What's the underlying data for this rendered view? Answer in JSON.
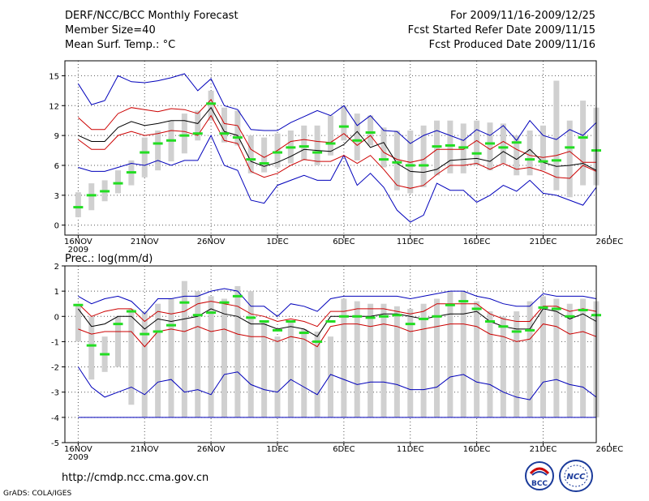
{
  "header": {
    "title": "DERF/NCC/BCC Monthly Forecast",
    "member_size": "Member Size=40",
    "variable": "Mean Surf. Temp.: °C",
    "period": "For 2009/11/16-2009/12/25",
    "started": "Fcst Started Refer Date 2009/11/15",
    "produced": "Fcst Produced Date 2009/11/16"
  },
  "footer": {
    "url": "http://cmdp.ncc.cma.gov.cn",
    "credit": "GrADS: COLA/IGES",
    "logo_bcc": "BCC",
    "logo_ncc": "NCC"
  },
  "colors": {
    "box": "#d0d0d0",
    "median": "#000000",
    "quartile": "#cc0000",
    "extreme": "#0000bb",
    "mean_marker": "#22dd22",
    "grid": "#555555"
  },
  "chart_data": [
    {
      "type": "box-line",
      "title": "Mean Surf. Temp.: °C",
      "ylabel": "°C",
      "ylim": [
        -1,
        16.5
      ],
      "yticks": [
        0,
        3,
        6,
        9,
        12,
        15
      ],
      "xlim": [
        0,
        40
      ],
      "xticks": [
        {
          "day": 1,
          "label": "16NOV",
          "sub": "2009"
        },
        {
          "day": 6,
          "label": "21NOV"
        },
        {
          "day": 11,
          "label": "26NOV"
        },
        {
          "day": 16,
          "label": "1DEC"
        },
        {
          "day": 21,
          "label": "6DEC"
        },
        {
          "day": 26,
          "label": "11DEC"
        },
        {
          "day": 31,
          "label": "16DEC"
        },
        {
          "day": 36,
          "label": "21DEC"
        },
        {
          "day": 41,
          "label": "26DEC"
        }
      ],
      "days": [
        1,
        2,
        3,
        4,
        5,
        6,
        7,
        8,
        9,
        10,
        11,
        12,
        13,
        14,
        15,
        16,
        17,
        18,
        19,
        20,
        21,
        22,
        23,
        24,
        25,
        26,
        27,
        28,
        29,
        30,
        31,
        32,
        33,
        34,
        35,
        36,
        37,
        38,
        39,
        40
      ],
      "box_low": [
        0.8,
        1.5,
        2.4,
        3.2,
        4.0,
        4.8,
        5.5,
        6.4,
        7.2,
        8.5,
        10.5,
        8.3,
        8.0,
        5.2,
        5.3,
        5.8,
        6.2,
        6.5,
        6.0,
        7.0,
        8.5,
        6.5,
        8.0,
        5.8,
        3.5,
        3.2,
        3.8,
        5.0,
        5.2,
        5.2,
        6.0,
        5.5,
        6.2,
        5.0,
        5.0,
        5.5,
        3.5,
        2.8,
        4.0,
        4.0
      ],
      "box_high": [
        3.3,
        4.2,
        4.5,
        5.5,
        6.5,
        8.8,
        9.5,
        10.5,
        11.2,
        11.5,
        13.5,
        11.8,
        11.5,
        9.0,
        8.8,
        9.2,
        9.5,
        10.0,
        10.0,
        11.0,
        12.0,
        11.2,
        11.0,
        9.8,
        9.5,
        9.5,
        10.0,
        10.5,
        10.5,
        10.2,
        10.5,
        10.3,
        10.2,
        9.0,
        9.5,
        10.0,
        14.5,
        10.5,
        12.5,
        11.8
      ],
      "mean": [
        1.8,
        3.0,
        3.4,
        4.2,
        5.3,
        7.3,
        8.2,
        8.5,
        9.0,
        9.2,
        12.2,
        9.2,
        8.8,
        6.6,
        6.2,
        7.3,
        7.8,
        7.9,
        7.3,
        8.2,
        9.9,
        8.5,
        9.3,
        6.6,
        6.3,
        6.0,
        6.0,
        7.9,
        8.0,
        7.8,
        7.2,
        8.2,
        7.8,
        8.3,
        6.6,
        6.4,
        6.5,
        7.8,
        8.8,
        7.5
      ],
      "median": [
        9.0,
        8.4,
        8.4,
        9.8,
        10.4,
        10.0,
        10.2,
        10.5,
        10.5,
        10.2,
        11.8,
        9.4,
        9.0,
        6.4,
        5.9,
        6.3,
        6.9,
        7.6,
        7.5,
        7.4,
        8.1,
        9.4,
        7.8,
        8.3,
        6.2,
        5.4,
        5.3,
        5.6,
        6.5,
        6.6,
        6.7,
        6.4,
        7.4,
        6.6,
        7.6,
        6.3,
        5.9,
        6.0,
        6.2,
        5.5
      ],
      "q_upper": [
        10.8,
        9.6,
        9.6,
        11.2,
        11.8,
        11.6,
        11.4,
        11.7,
        11.6,
        11.2,
        12.6,
        10.2,
        10.0,
        7.6,
        6.8,
        7.5,
        8.4,
        8.6,
        8.4,
        8.3,
        9.2,
        8.0,
        9.0,
        7.3,
        6.6,
        6.3,
        6.6,
        7.6,
        7.6,
        7.6,
        8.5,
        7.6,
        8.4,
        7.6,
        7.0,
        6.8,
        7.0,
        7.4,
        6.3,
        6.3
      ],
      "q_lower": [
        8.6,
        7.6,
        7.6,
        9.0,
        9.4,
        9.0,
        9.2,
        9.5,
        9.4,
        9.0,
        11.0,
        8.5,
        8.2,
        5.4,
        4.8,
        5.2,
        6.0,
        6.6,
        6.4,
        6.4,
        7.0,
        6.2,
        7.0,
        5.6,
        4.0,
        3.7,
        4.0,
        5.1,
        6.0,
        6.0,
        6.2,
        5.6,
        6.2,
        5.6,
        5.8,
        5.4,
        4.8,
        4.7,
        6.0,
        5.4
      ],
      "max": [
        14.2,
        12.1,
        12.5,
        15.0,
        14.4,
        14.3,
        14.5,
        14.8,
        15.2,
        13.5,
        14.7,
        12.0,
        11.6,
        9.6,
        9.5,
        9.5,
        10.3,
        10.9,
        11.5,
        11.0,
        12.0,
        10.0,
        11.0,
        9.5,
        9.4,
        8.2,
        9.0,
        9.5,
        9.0,
        8.5,
        9.6,
        9.0,
        10.0,
        8.5,
        10.5,
        9.0,
        8.6,
        9.6,
        9.0,
        10.3
      ],
      "min": [
        5.8,
        5.4,
        5.4,
        5.8,
        6.2,
        6.0,
        6.5,
        6.0,
        6.5,
        6.5,
        9.0,
        6.0,
        5.5,
        2.5,
        2.2,
        4.0,
        4.5,
        5.0,
        4.5,
        4.5,
        7.0,
        4.0,
        5.2,
        3.8,
        1.5,
        0.3,
        1.0,
        4.2,
        3.5,
        3.5,
        2.3,
        3.0,
        4.0,
        3.4,
        4.5,
        3.2,
        3.0,
        2.5,
        2.0,
        3.8
      ]
    },
    {
      "type": "box-line",
      "title": "Prec.: log(mm/d)",
      "ylabel": "log(mm/d)",
      "ylim": [
        -5,
        2
      ],
      "yticks": [
        -5,
        -4,
        -3,
        -2,
        -1,
        0,
        1,
        2
      ],
      "xlim": [
        0,
        40
      ],
      "xticks": [
        {
          "day": 1,
          "label": "16NOV",
          "sub": "2009"
        },
        {
          "day": 6,
          "label": "21NOV"
        },
        {
          "day": 11,
          "label": "26NOV"
        },
        {
          "day": 16,
          "label": "1DEC"
        },
        {
          "day": 21,
          "label": "6DEC"
        },
        {
          "day": 26,
          "label": "11DEC"
        },
        {
          "day": 31,
          "label": "16DEC"
        },
        {
          "day": 36,
          "label": "21DEC"
        },
        {
          "day": 41,
          "label": "26DEC"
        }
      ],
      "days": [
        1,
        2,
        3,
        4,
        5,
        6,
        7,
        8,
        9,
        10,
        11,
        12,
        13,
        14,
        15,
        16,
        17,
        18,
        19,
        20,
        21,
        22,
        23,
        24,
        25,
        26,
        27,
        28,
        29,
        30,
        31,
        32,
        33,
        34,
        35,
        36,
        37,
        38,
        39,
        40
      ],
      "box_low": [
        -1.0,
        -2.5,
        -2.2,
        -2.0,
        -3.5,
        -4.0,
        -4.0,
        -4.0,
        -4.0,
        -4.0,
        -4.0,
        -4.0,
        -4.0,
        -4.0,
        -4.0,
        -4.0,
        -4.0,
        -4.0,
        -4.0,
        -4.0,
        -4.0,
        -4.0,
        -4.0,
        -4.0,
        -4.0,
        -4.0,
        -4.0,
        -4.0,
        -4.0,
        -4.0,
        -4.0,
        -4.0,
        -4.0,
        -4.0,
        -4.0,
        -4.0,
        -4.0,
        -4.0,
        -4.0,
        -4.0
      ],
      "box_high": [
        0.5,
        0.0,
        -0.8,
        0.0,
        0.3,
        0.2,
        0.5,
        0.7,
        1.4,
        1.0,
        0.8,
        0.7,
        1.2,
        1.0,
        -0.2,
        -0.8,
        -0.2,
        -0.5,
        -0.6,
        -0.8,
        0.7,
        0.6,
        0.5,
        0.5,
        0.4,
        0.3,
        0.5,
        0.7,
        1.0,
        1.0,
        0.6,
        0.2,
        0.0,
        0.2,
        0.6,
        0.8,
        0.7,
        0.5,
        0.7,
        0.6
      ],
      "mean": [
        0.45,
        -1.15,
        -1.5,
        -0.3,
        0.2,
        -0.7,
        -0.6,
        -0.35,
        0.55,
        0.05,
        0.15,
        0.55,
        0.8,
        -0.05,
        -0.2,
        -0.55,
        -0.2,
        -0.65,
        -1.0,
        -0.2,
        0.0,
        0.0,
        -0.05,
        0.0,
        0.05,
        -0.3,
        -0.1,
        0.0,
        0.45,
        0.6,
        0.3,
        -0.2,
        -0.4,
        -0.6,
        -0.55,
        0.35,
        0.3,
        0.0,
        0.25,
        0.05
      ],
      "median": [
        0.3,
        -0.4,
        -0.3,
        0.0,
        0.0,
        -0.5,
        -0.1,
        -0.2,
        -0.1,
        0.0,
        0.3,
        0.1,
        0.0,
        -0.3,
        -0.3,
        -0.5,
        -0.4,
        -0.5,
        -0.8,
        0.0,
        0.0,
        0.0,
        0.0,
        0.1,
        0.1,
        0.0,
        -0.1,
        0.0,
        0.1,
        0.1,
        0.2,
        -0.2,
        -0.4,
        -0.5,
        -0.5,
        0.3,
        0.2,
        -0.1,
        0.1,
        -0.2
      ],
      "q_upper": [
        0.5,
        0.0,
        0.2,
        0.3,
        0.3,
        -0.2,
        0.2,
        0.1,
        0.2,
        0.5,
        0.6,
        0.5,
        0.4,
        0.1,
        0.0,
        -0.2,
        -0.1,
        -0.2,
        -0.4,
        0.2,
        0.2,
        0.3,
        0.3,
        0.3,
        0.2,
        0.1,
        0.2,
        0.5,
        0.5,
        0.5,
        0.5,
        0.1,
        -0.1,
        -0.2,
        -0.2,
        0.4,
        0.4,
        0.2,
        0.3,
        0.2
      ],
      "q_lower": [
        -0.5,
        -0.7,
        -0.6,
        -0.6,
        -0.6,
        -1.2,
        -0.6,
        -0.5,
        -0.6,
        -0.4,
        -0.6,
        -0.5,
        -0.7,
        -0.8,
        -0.8,
        -1.0,
        -0.8,
        -0.9,
        -1.2,
        -0.4,
        -0.3,
        -0.3,
        -0.4,
        -0.3,
        -0.4,
        -0.6,
        -0.5,
        -0.4,
        -0.3,
        -0.3,
        -0.4,
        -0.7,
        -0.8,
        -1.0,
        -0.9,
        -0.3,
        -0.4,
        -0.7,
        -0.6,
        -0.8
      ],
      "max": [
        0.8,
        0.5,
        0.7,
        0.8,
        0.6,
        0.1,
        0.7,
        0.7,
        0.8,
        0.8,
        1.0,
        1.1,
        1.0,
        0.4,
        0.4,
        0.0,
        0.5,
        0.4,
        0.2,
        0.7,
        0.8,
        0.8,
        0.8,
        0.8,
        0.8,
        0.7,
        0.8,
        0.9,
        1.0,
        1.0,
        0.8,
        0.7,
        0.5,
        0.4,
        0.4,
        0.9,
        0.8,
        0.8,
        0.8,
        0.7
      ],
      "min": [
        -2.0,
        -2.8,
        -3.2,
        -3.0,
        -2.8,
        -3.1,
        -2.6,
        -2.5,
        -3.0,
        -2.9,
        -3.1,
        -2.3,
        -2.2,
        -2.7,
        -2.9,
        -3.0,
        -2.5,
        -2.8,
        -3.1,
        -2.3,
        -2.5,
        -2.7,
        -2.6,
        -2.6,
        -2.7,
        -2.9,
        -2.9,
        -2.8,
        -2.4,
        -2.3,
        -2.6,
        -2.7,
        -3.0,
        -3.2,
        -3.3,
        -2.6,
        -2.5,
        -2.7,
        -2.8,
        -3.2
      ],
      "floor": -4.0
    }
  ]
}
